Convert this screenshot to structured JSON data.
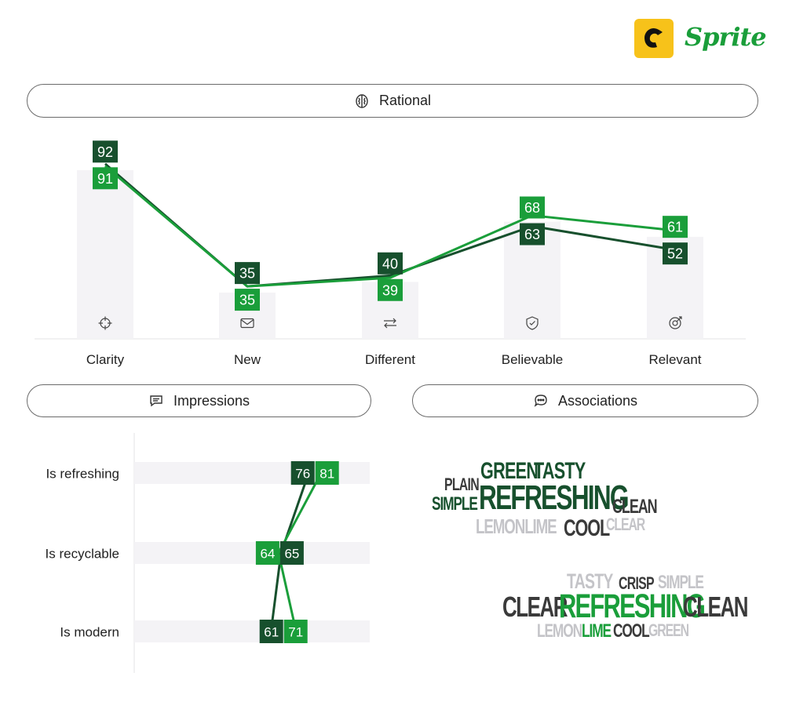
{
  "header": {
    "brand_name": "Sprite",
    "logo_icon": "c-logo-icon",
    "brand_color": "#1a9e3a"
  },
  "colors": {
    "dark_green": "#17502d",
    "bright_green": "#1a9e3a",
    "bar_bg": "#f4f3f6"
  },
  "rational": {
    "title": "Rational",
    "icon": "brain-icon",
    "categories": [
      {
        "label": "Clarity",
        "icon": "crosshair-icon"
      },
      {
        "label": "New",
        "icon": "envelope-icon"
      },
      {
        "label": "Different",
        "icon": "arrows-exchange-icon"
      },
      {
        "label": "Believable",
        "icon": "shield-check-icon"
      },
      {
        "label": "Relevant",
        "icon": "target-icon"
      }
    ]
  },
  "impressions": {
    "title": "Impressions",
    "icon": "chat-bubble-icon"
  },
  "associations": {
    "title": "Associations",
    "icon": "chat-dots-icon",
    "cloud1": [
      {
        "text": "GREEN",
        "color": "#17502d"
      },
      {
        "text": "TASTY",
        "color": "#17502d"
      },
      {
        "text": "PLAIN",
        "color": "#3a3a3a"
      },
      {
        "text": "SIMPLE",
        "color": "#17502d"
      },
      {
        "text": "REFRESHING",
        "color": "#17502d"
      },
      {
        "text": "CLEAN",
        "color": "#3a3a3a"
      },
      {
        "text": "LEMONLIME",
        "color": "#c4c4c8"
      },
      {
        "text": "COOL",
        "color": "#3a3a3a"
      },
      {
        "text": "CLEAR",
        "color": "#c4c4c8"
      }
    ],
    "cloud2": [
      {
        "text": "TASTY",
        "color": "#c4c4c8"
      },
      {
        "text": "CRISP",
        "color": "#3a3a3a"
      },
      {
        "text": "SIMPLE",
        "color": "#c4c4c8"
      },
      {
        "text": "CLEAR",
        "color": "#3a3a3a"
      },
      {
        "text": "REFRESHING",
        "color": "#1a9e3a"
      },
      {
        "text": "CLEAN",
        "color": "#3a3a3a"
      },
      {
        "text": "LEMON",
        "color": "#c4c4c8"
      },
      {
        "text": "LIME",
        "color": "#1a9e3a"
      },
      {
        "text": "COOL",
        "color": "#3a3a3a"
      },
      {
        "text": "GREEN",
        "color": "#c4c4c8"
      }
    ]
  },
  "chart_data": [
    {
      "type": "line",
      "title": "Rational",
      "categories": [
        "Clarity",
        "New",
        "Different",
        "Believable",
        "Relevant"
      ],
      "series": [
        {
          "color": "#17502d",
          "values": [
            92,
            35,
            40,
            63,
            52
          ]
        },
        {
          "color": "#1a9e3a",
          "values": [
            91,
            35,
            39,
            68,
            61
          ]
        }
      ],
      "background_bars": true
    },
    {
      "type": "line",
      "title": "Impressions",
      "categories": [
        "Is refreshing",
        "Is recyclable",
        "Is modern"
      ],
      "series": [
        {
          "color": "#17502d",
          "values": [
            76,
            65,
            61
          ]
        },
        {
          "color": "#1a9e3a",
          "values": [
            81,
            64,
            71
          ]
        }
      ],
      "orientation": "horizontal"
    }
  ]
}
